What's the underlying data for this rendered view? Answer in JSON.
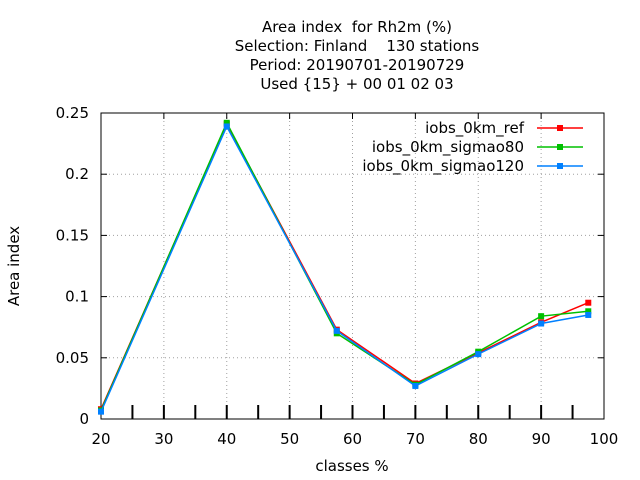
{
  "chart_data": {
    "type": "line",
    "title_lines": [
      "Area index  for Rh2m (%)",
      "Selection: Finland    130 stations",
      "Period: 20190701-20190729",
      "Used {15} + 00 01 02 03"
    ],
    "xlabel": "classes %",
    "ylabel": "Area index",
    "xlim": [
      20,
      100
    ],
    "ylim": [
      0,
      0.25
    ],
    "xticks": [
      20,
      30,
      40,
      50,
      60,
      70,
      80,
      90,
      100
    ],
    "yticks": [
      0,
      0.05,
      0.1,
      0.15,
      0.2,
      0.25
    ],
    "grid": true,
    "legend_position": "top-right",
    "series": [
      {
        "name": "iobs_0km_ref",
        "color": "#ff0000",
        "x": [
          20,
          40,
          57.5,
          70,
          80,
          90,
          97.5
        ],
        "y": [
          0.008,
          0.241,
          0.073,
          0.029,
          0.054,
          0.079,
          0.095
        ]
      },
      {
        "name": "iobs_0km_sigmao80",
        "color": "#00c000",
        "x": [
          20,
          40,
          57.5,
          70,
          80,
          90,
          97.5
        ],
        "y": [
          0.007,
          0.242,
          0.07,
          0.028,
          0.055,
          0.084,
          0.088
        ]
      },
      {
        "name": "iobs_0km_sigmao120",
        "color": "#0080ff",
        "x": [
          20,
          40,
          57.5,
          70,
          80,
          90,
          97.5
        ],
        "y": [
          0.006,
          0.239,
          0.072,
          0.027,
          0.053,
          0.078,
          0.085
        ]
      }
    ]
  }
}
